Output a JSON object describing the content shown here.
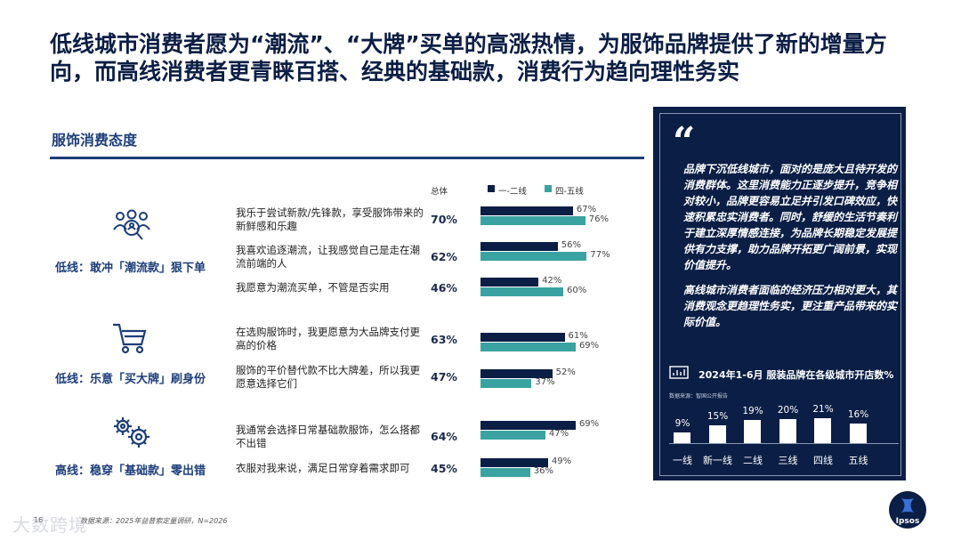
{
  "title": "低线城市消费者愿为“潮流”、“大牌”买单的高涨热情，为服饰品牌提供了新的增量方向，而高线消费者更青睐百搭、经典的基础款，消费行为趋向理性务实",
  "section_label": "服饰消费态度",
  "header": {
    "total_label": "总体"
  },
  "colors": {
    "tier1": "#0b1e45",
    "tier45": "#3aa3a1",
    "panel": "#0b1e45"
  },
  "chart_data": [
    {
      "type": "bar",
      "orientation": "horizontal",
      "legend": [
        "一-二线",
        "四-五线"
      ],
      "legend_position": "top",
      "groups": [
        {
          "label": "低线：敢冲「潮流款」狠下单",
          "icon": "people-search-icon",
          "rows": [
            {
              "statement": "我乐于尝试新款/先锋款，享受服饰带来的新鲜感和乐趣",
              "total": "70%",
              "tier1": 67,
              "tier45": 76
            },
            {
              "statement": "我喜欢追逐潮流，让我感觉自己是走在潮流前端的人",
              "total": "62%",
              "tier1": 56,
              "tier45": 77
            },
            {
              "statement": "我愿意为潮流买单，不管是否实用",
              "total": "46%",
              "tier1": 42,
              "tier45": 60
            }
          ]
        },
        {
          "label": "低线：乐意「买大牌」刷身份",
          "icon": "shopping-cart-icon",
          "rows": [
            {
              "statement": "在选购服饰时，我更愿意为大品牌支付更高的价格",
              "total": "63%",
              "tier1": 61,
              "tier45": 69
            },
            {
              "statement": "服饰的平价替代款不比大牌差，所以我更愿意选择它们",
              "total": "47%",
              "tier1": 52,
              "tier45": 37
            }
          ]
        },
        {
          "label": "高线：稳穿「基础款」零出错",
          "icon": "gears-icon",
          "rows": [
            {
              "statement": "我通常会选择日常基础款服饰，怎么搭都不出错",
              "total": "64%",
              "tier1": 69,
              "tier45": 47
            },
            {
              "statement": "衣服对我来说，满足日常穿着需求即可",
              "total": "45%",
              "tier1": 49,
              "tier45": 36
            }
          ]
        }
      ]
    },
    {
      "type": "bar",
      "title": "2024年1-6月 服装品牌在各级城市开店数%",
      "source": "数据来源：智国公开报告",
      "categories": [
        "一线",
        "新一线",
        "二线",
        "三线",
        "四线",
        "五线"
      ],
      "values": [
        9,
        15,
        19,
        20,
        21,
        16
      ],
      "value_labels": [
        "9%",
        "15%",
        "19%",
        "20%",
        "21%",
        "16%"
      ]
    }
  ],
  "quote": {
    "mark": "“",
    "paragraph1": "品牌下沉低线城市，面对的是庞大且待开发的消费群体。这里消费能力正逐步提升，竞争相对较小，品牌更容易立足并引发口碑效应，快速积累忠实消费者。同时，舒缓的生活节奏利于建立深厚情感连接，为品牌长期稳定发展提供有力支撑，助力品牌开拓更广阔前景，实现价值提升。",
    "paragraph2": "高线城市消费者面临的经济压力相对更大，其消费观念更趋理性务实，更注重产品带来的实际价值。"
  },
  "footer": {
    "page_number": "16",
    "source": "数据来源：2025年益普索定量调研，N=2026"
  },
  "watermark": "大数跨境",
  "logo": "Ipsos"
}
